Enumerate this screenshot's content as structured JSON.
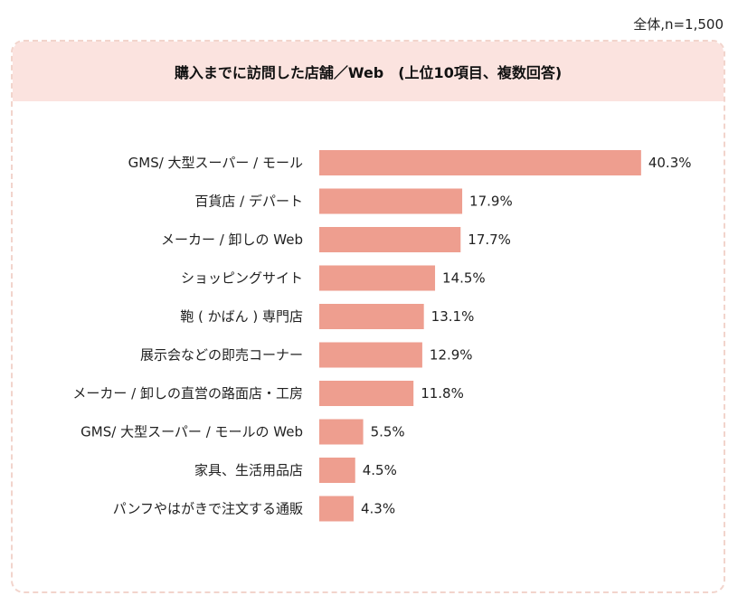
{
  "note": "全体,n=1,500",
  "chart_data": {
    "type": "bar",
    "orientation": "horizontal",
    "title": "購入までに訪問した店舗／Web　(上位10項目、複数回答)",
    "categories": [
      "GMS/ 大型スーパー / モール",
      "百貨店 / デパート",
      "メーカー / 卸しの Web",
      "ショッピングサイト",
      "鞄 ( かばん ) 専門店",
      "展示会などの即売コーナー",
      "メーカー / 卸しの直営の路面店・工房",
      "GMS/ 大型スーパー / モールの Web",
      "家具、生活用品店",
      "パンフやはがきで注文する通販"
    ],
    "values": [
      40.3,
      17.9,
      17.7,
      14.5,
      13.1,
      12.9,
      11.8,
      5.5,
      4.5,
      4.3
    ],
    "value_labels": [
      "40.3%",
      "17.9%",
      "17.7%",
      "14.5%",
      "13.1%",
      "12.9%",
      "11.8%",
      "5.5%",
      "4.5%",
      "4.3%"
    ],
    "unit": "%",
    "bar_color": "#ee9e8f",
    "xlim": [
      0,
      45
    ],
    "grid": false
  },
  "colors": {
    "panel_header": "#fbe3df",
    "panel_border": "#f2d4cc"
  }
}
